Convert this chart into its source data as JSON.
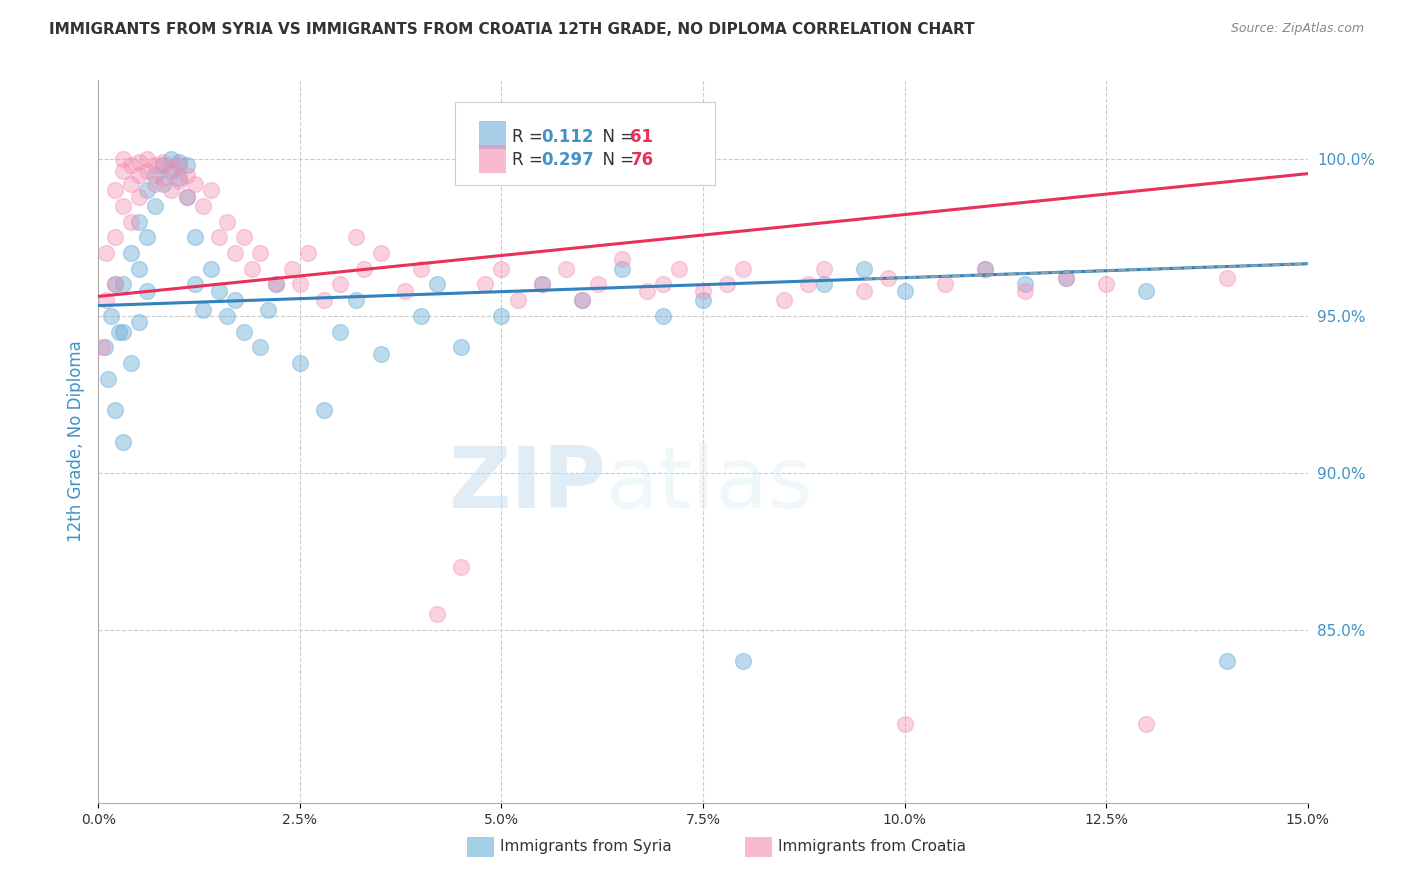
{
  "title": "IMMIGRANTS FROM SYRIA VS IMMIGRANTS FROM CROATIA 12TH GRADE, NO DIPLOMA CORRELATION CHART",
  "source": "Source: ZipAtlas.com",
  "ylabel": "12th Grade, No Diploma",
  "ylabel_right_ticks": [
    "100.0%",
    "95.0%",
    "90.0%",
    "85.0%"
  ],
  "ylabel_right_vals": [
    1.0,
    0.95,
    0.9,
    0.85
  ],
  "xmin": 0.0,
  "xmax": 0.15,
  "ymin": 0.795,
  "ymax": 1.025,
  "legend_r_syria": "0.112",
  "legend_n_syria": "61",
  "legend_r_croatia": "0.297",
  "legend_n_croatia": "76",
  "syria_color": "#6baed6",
  "croatia_color": "#f48cb1",
  "syria_line_color": "#3182bd",
  "croatia_line_color": "#e8305a",
  "watermark_zip": "ZIP",
  "watermark_atlas": "atlas",
  "syria_x": [
    0.0008,
    0.0012,
    0.0015,
    0.002,
    0.002,
    0.0025,
    0.003,
    0.003,
    0.003,
    0.004,
    0.004,
    0.005,
    0.005,
    0.005,
    0.006,
    0.006,
    0.006,
    0.007,
    0.007,
    0.008,
    0.008,
    0.009,
    0.009,
    0.01,
    0.01,
    0.011,
    0.011,
    0.012,
    0.012,
    0.013,
    0.014,
    0.015,
    0.016,
    0.017,
    0.018,
    0.02,
    0.021,
    0.022,
    0.025,
    0.028,
    0.03,
    0.032,
    0.035,
    0.04,
    0.042,
    0.045,
    0.05,
    0.055,
    0.06,
    0.065,
    0.07,
    0.075,
    0.08,
    0.09,
    0.095,
    0.1,
    0.11,
    0.115,
    0.12,
    0.13,
    0.14
  ],
  "syria_y": [
    0.94,
    0.93,
    0.95,
    0.92,
    0.96,
    0.945,
    0.96,
    0.945,
    0.91,
    0.97,
    0.935,
    0.98,
    0.965,
    0.948,
    0.99,
    0.975,
    0.958,
    0.995,
    0.985,
    0.998,
    0.992,
    1.0,
    0.996,
    0.999,
    0.994,
    0.998,
    0.988,
    0.975,
    0.96,
    0.952,
    0.965,
    0.958,
    0.95,
    0.955,
    0.945,
    0.94,
    0.952,
    0.96,
    0.935,
    0.92,
    0.945,
    0.955,
    0.938,
    0.95,
    0.96,
    0.94,
    0.95,
    0.96,
    0.955,
    0.965,
    0.95,
    0.955,
    0.84,
    0.96,
    0.965,
    0.958,
    0.965,
    0.96,
    0.962,
    0.958,
    0.84
  ],
  "croatia_x": [
    0.0005,
    0.001,
    0.001,
    0.002,
    0.002,
    0.002,
    0.003,
    0.003,
    0.003,
    0.004,
    0.004,
    0.004,
    0.005,
    0.005,
    0.005,
    0.006,
    0.006,
    0.007,
    0.007,
    0.008,
    0.008,
    0.009,
    0.009,
    0.01,
    0.01,
    0.011,
    0.011,
    0.012,
    0.013,
    0.014,
    0.015,
    0.016,
    0.017,
    0.018,
    0.019,
    0.02,
    0.022,
    0.024,
    0.025,
    0.026,
    0.028,
    0.03,
    0.032,
    0.033,
    0.035,
    0.038,
    0.04,
    0.042,
    0.045,
    0.048,
    0.05,
    0.052,
    0.055,
    0.058,
    0.06,
    0.062,
    0.065,
    0.068,
    0.07,
    0.072,
    0.075,
    0.078,
    0.08,
    0.085,
    0.088,
    0.09,
    0.095,
    0.098,
    0.1,
    0.105,
    0.11,
    0.115,
    0.12,
    0.125,
    0.13,
    0.14
  ],
  "croatia_y": [
    0.94,
    0.97,
    0.955,
    0.99,
    0.975,
    0.96,
    1.0,
    0.996,
    0.985,
    0.998,
    0.992,
    0.98,
    0.999,
    0.995,
    0.988,
    1.0,
    0.996,
    0.998,
    0.992,
    0.999,
    0.994,
    0.997,
    0.99,
    0.998,
    0.993,
    0.995,
    0.988,
    0.992,
    0.985,
    0.99,
    0.975,
    0.98,
    0.97,
    0.975,
    0.965,
    0.97,
    0.96,
    0.965,
    0.96,
    0.97,
    0.955,
    0.96,
    0.975,
    0.965,
    0.97,
    0.958,
    0.965,
    0.855,
    0.87,
    0.96,
    0.965,
    0.955,
    0.96,
    0.965,
    0.955,
    0.96,
    0.968,
    0.958,
    0.96,
    0.965,
    0.958,
    0.96,
    0.965,
    0.955,
    0.96,
    0.965,
    0.958,
    0.962,
    0.82,
    0.96,
    0.965,
    0.958,
    0.962,
    0.96,
    0.82,
    0.962
  ]
}
